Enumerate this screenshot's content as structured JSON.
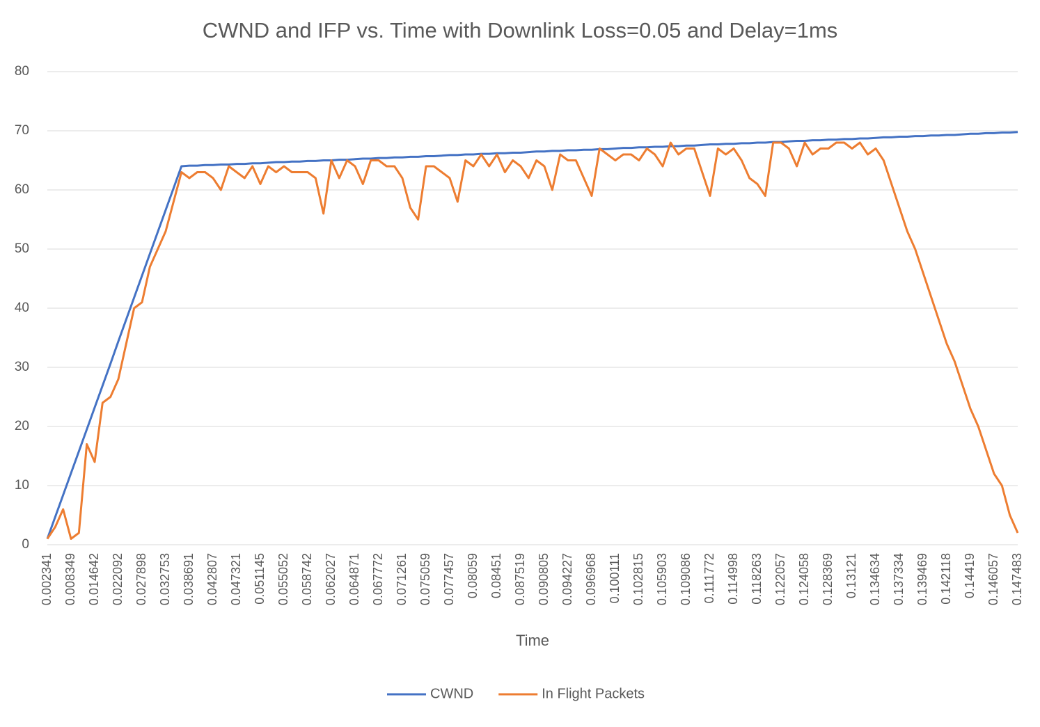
{
  "chart_data": {
    "type": "line",
    "title": "CWND and IFP vs. Time with Downlink Loss=0.05 and Delay=1ms",
    "x_label": "Time",
    "categories": [
      "0.002341",
      null,
      null,
      "0.008349",
      null,
      null,
      "0.014642",
      null,
      null,
      "0.022092",
      null,
      null,
      "0.027898",
      null,
      null,
      "0.032753",
      null,
      null,
      "0.038691",
      null,
      null,
      "0.042807",
      null,
      null,
      "0.047321",
      null,
      null,
      "0.051145",
      null,
      null,
      "0.055052",
      null,
      null,
      "0.058742",
      null,
      null,
      "0.062027",
      null,
      null,
      "0.064871",
      null,
      null,
      "0.067772",
      null,
      null,
      "0.071261",
      null,
      null,
      "0.075059",
      null,
      null,
      "0.077457",
      null,
      null,
      "0.08059",
      null,
      null,
      "0.08451",
      null,
      null,
      "0.087519",
      null,
      null,
      "0.090805",
      null,
      null,
      "0.094227",
      null,
      null,
      "0.096968",
      null,
      null,
      "0.100111",
      null,
      null,
      "0.102815",
      null,
      null,
      "0.105903",
      null,
      null,
      "0.109086",
      null,
      null,
      "0.111772",
      null,
      null,
      "0.114998",
      null,
      null,
      "0.118263",
      null,
      null,
      "0.122057",
      null,
      null,
      "0.124058",
      null,
      null,
      "0.128369",
      null,
      null,
      "0.13121",
      null,
      null,
      "0.134634",
      null,
      null,
      "0.137334",
      null,
      null,
      "0.139469",
      null,
      null,
      "0.142118",
      null,
      null,
      "0.14419",
      null,
      null,
      "0.146057",
      null,
      null,
      "0.147483"
    ],
    "series": [
      {
        "name": "CWND",
        "color": "#4472c4",
        "values": [
          1,
          4.7,
          8.4,
          12.1,
          15.8,
          19.5,
          23.2,
          26.9,
          30.6,
          34.4,
          38.1,
          41.8,
          45.5,
          49.2,
          52.9,
          56.6,
          60.3,
          64,
          64.1,
          64.1,
          64.2,
          64.2,
          64.3,
          64.3,
          64.4,
          64.4,
          64.5,
          64.5,
          64.6,
          64.7,
          64.7,
          64.8,
          64.8,
          64.9,
          64.9,
          65.0,
          65.0,
          65.1,
          65.1,
          65.2,
          65.3,
          65.3,
          65.4,
          65.4,
          65.5,
          65.5,
          65.6,
          65.6,
          65.7,
          65.7,
          65.8,
          65.9,
          65.9,
          66.0,
          66.0,
          66.1,
          66.1,
          66.2,
          66.2,
          66.3,
          66.3,
          66.4,
          66.5,
          66.5,
          66.6,
          66.6,
          66.7,
          66.7,
          66.8,
          66.8,
          66.9,
          66.9,
          67.0,
          67.1,
          67.1,
          67.2,
          67.2,
          67.3,
          67.3,
          67.4,
          67.4,
          67.5,
          67.5,
          67.6,
          67.7,
          67.7,
          67.8,
          67.8,
          67.9,
          67.9,
          68.0,
          68.0,
          68.1,
          68.1,
          68.2,
          68.3,
          68.3,
          68.4,
          68.4,
          68.5,
          68.5,
          68.6,
          68.6,
          68.7,
          68.7,
          68.8,
          68.9,
          68.9,
          69.0,
          69.0,
          69.1,
          69.1,
          69.2,
          69.2,
          69.3,
          69.3,
          69.4,
          69.5,
          69.5,
          69.6,
          69.6,
          69.7,
          69.7,
          69.8
        ]
      },
      {
        "name": "In Flight Packets",
        "color": "#ed7d31",
        "values": [
          1,
          3,
          6,
          1,
          2,
          17,
          14,
          24,
          25,
          28,
          34,
          40,
          41,
          47,
          50,
          53,
          58,
          63,
          62,
          63,
          63,
          62,
          60,
          64,
          63,
          62,
          64,
          61,
          64,
          63,
          64,
          63,
          63,
          63,
          62,
          56,
          65,
          62,
          65,
          64,
          61,
          65,
          65,
          64,
          64,
          62,
          57,
          55,
          64,
          64,
          63,
          62,
          58,
          65,
          64,
          66,
          64,
          66,
          63,
          65,
          64,
          62,
          65,
          64,
          60,
          66,
          65,
          65,
          62,
          59,
          67,
          66,
          65,
          66,
          66,
          65,
          67,
          66,
          64,
          68,
          66,
          67,
          67,
          63,
          59,
          67,
          66,
          67,
          65,
          62,
          61,
          59,
          68,
          68,
          67,
          64,
          68,
          66,
          67,
          67,
          68,
          68,
          67,
          68,
          66,
          67,
          65,
          61,
          57,
          53,
          50,
          46,
          42,
          38,
          34,
          31,
          27,
          23,
          20,
          16,
          12,
          10,
          5,
          2
        ]
      }
    ],
    "ylim": [
      0,
      80
    ],
    "yticks": [
      0,
      10,
      20,
      30,
      40,
      50,
      60,
      70,
      80
    ],
    "grid": true,
    "legend": "bottom"
  }
}
